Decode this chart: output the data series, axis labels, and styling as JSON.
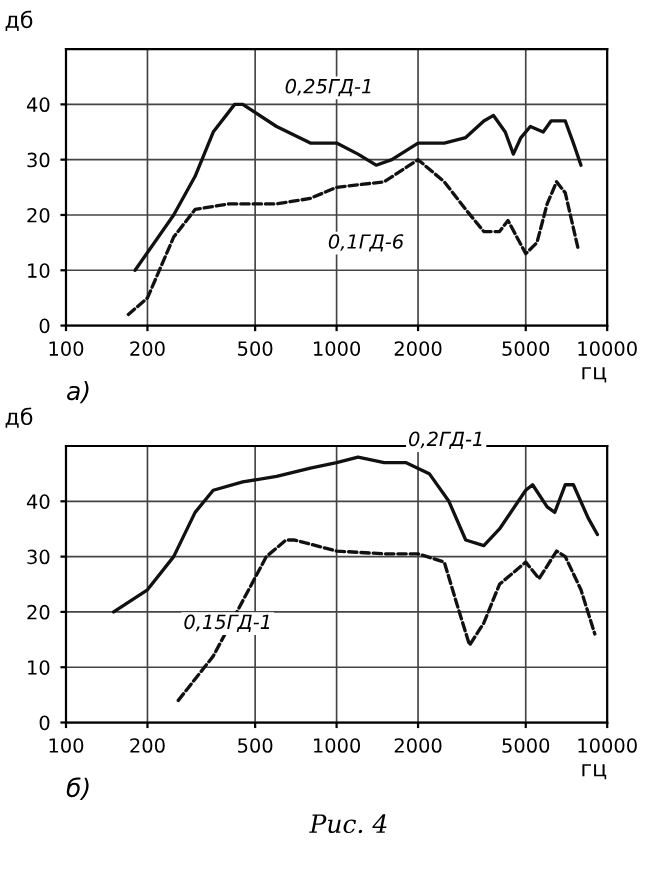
{
  "chart_data": [
    {
      "type": "line",
      "xlabel": "гц",
      "ylabel": "дб",
      "log": "x",
      "xlim": [
        100,
        10000
      ],
      "ylim": [
        0,
        50
      ],
      "xticks": [
        100,
        200,
        500,
        1000,
        2000,
        5000,
        10000
      ],
      "yticks": [
        0,
        10,
        20,
        30,
        40
      ],
      "grid": true,
      "legend": false,
      "marker": "none",
      "annotations": [
        "а)"
      ],
      "series": [
        {
          "name": "0,25ГД-1",
          "color": "#111111",
          "line_style": "solid",
          "x": [
            180,
            250,
            300,
            350,
            420,
            450,
            600,
            800,
            1000,
            1200,
            1400,
            1600,
            2000,
            2500,
            3000,
            3500,
            3800,
            4200,
            4500,
            4800,
            5200,
            5800,
            6200,
            7000,
            7500,
            8000
          ],
          "values": [
            10,
            20,
            27,
            35,
            40,
            40,
            36,
            33,
            33,
            31,
            29,
            30,
            33,
            33,
            34,
            37,
            38,
            35,
            31,
            34,
            36,
            35,
            37,
            37,
            33,
            29
          ]
        },
        {
          "name": "0,1ГД-6",
          "color": "#111111",
          "line_style": "dashed",
          "x": [
            170,
            200,
            250,
            300,
            400,
            600,
            800,
            1000,
            1500,
            2000,
            2500,
            3000,
            3500,
            4000,
            4300,
            5000,
            5500,
            6000,
            6500,
            7000,
            7800
          ],
          "values": [
            2,
            5,
            16,
            21,
            22,
            22,
            23,
            25,
            26,
            30,
            26,
            21,
            17,
            17,
            19,
            13,
            15,
            22,
            26,
            24,
            14
          ]
        }
      ]
    },
    {
      "type": "line",
      "xlabel": "гц",
      "ylabel": "дб",
      "log": "x",
      "xlim": [
        100,
        10000
      ],
      "ylim": [
        0,
        50
      ],
      "xticks": [
        100,
        200,
        500,
        1000,
        2000,
        5000,
        10000
      ],
      "yticks": [
        0,
        10,
        20,
        30,
        40
      ],
      "grid": true,
      "legend": false,
      "marker": "none",
      "annotations": [
        "б)",
        "Рис. 4"
      ],
      "series": [
        {
          "name": "0,2ГД-1",
          "color": "#111111",
          "line_style": "solid",
          "x": [
            150,
            200,
            250,
            300,
            350,
            450,
            600,
            800,
            1000,
            1200,
            1500,
            1800,
            2200,
            2600,
            3000,
            3500,
            4000,
            5000,
            5300,
            6000,
            6400,
            7000,
            7500,
            8500,
            9200
          ],
          "values": [
            20,
            24,
            30,
            38,
            42,
            43.5,
            44.5,
            46,
            47,
            48,
            47,
            47,
            45,
            40,
            33,
            32,
            35,
            42,
            43,
            39,
            38,
            43,
            43,
            37,
            34
          ]
        },
        {
          "name": "0,15ГД-1",
          "color": "#111111",
          "line_style": "dashed",
          "x": [
            260,
            350,
            450,
            550,
            650,
            700,
            1000,
            1500,
            2000,
            2500,
            2800,
            3100,
            3500,
            4000,
            5000,
            5600,
            6500,
            7000,
            8000,
            9000
          ],
          "values": [
            4,
            12,
            22,
            30,
            33,
            33,
            31,
            30.5,
            30.5,
            29,
            21,
            14,
            18,
            25,
            29,
            26,
            31,
            30,
            24,
            16
          ]
        }
      ]
    }
  ]
}
